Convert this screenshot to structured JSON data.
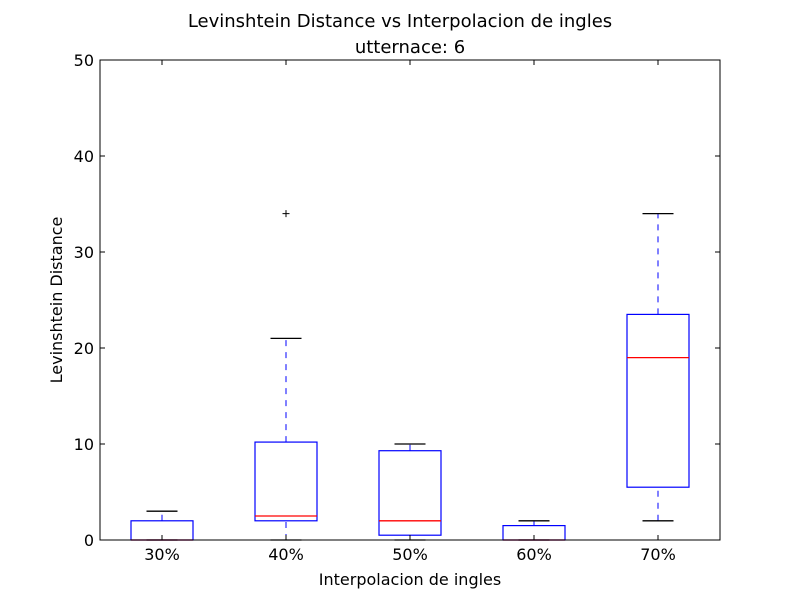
{
  "chart_data": {
    "type": "box",
    "title": "Levinshtein Distance vs Interpolacion de ingles",
    "subtitle": "utternace: 6",
    "xlabel": "Interpolacion de ingles",
    "ylabel": "Levinshtein Distance",
    "ylim": [
      0,
      50
    ],
    "yticks": [
      0,
      10,
      20,
      30,
      40,
      50
    ],
    "categories": [
      "30%",
      "40%",
      "50%",
      "60%",
      "70%"
    ],
    "boxes": [
      {
        "category": "30%",
        "whisker_low": 0,
        "q1": 0,
        "median": 0,
        "q3": 2,
        "whisker_high": 3,
        "outliers": []
      },
      {
        "category": "40%",
        "whisker_low": 0,
        "q1": 2,
        "median": 2.5,
        "q3": 10.2,
        "whisker_high": 21,
        "outliers": [
          34
        ]
      },
      {
        "category": "50%",
        "whisker_low": 0,
        "q1": 0.5,
        "median": 2,
        "q3": 9.3,
        "whisker_high": 10,
        "outliers": []
      },
      {
        "category": "60%",
        "whisker_low": 0,
        "q1": 0,
        "median": 0,
        "q3": 1.5,
        "whisker_high": 2,
        "outliers": []
      },
      {
        "category": "70%",
        "whisker_low": 2,
        "q1": 5.5,
        "median": 19,
        "q3": 23.5,
        "whisker_high": 34,
        "outliers": []
      }
    ],
    "grid": false,
    "colors": {
      "box": "#0000ff",
      "median": "#ff0000",
      "whisker_cap": "#000000",
      "outlier": "#000000"
    }
  }
}
